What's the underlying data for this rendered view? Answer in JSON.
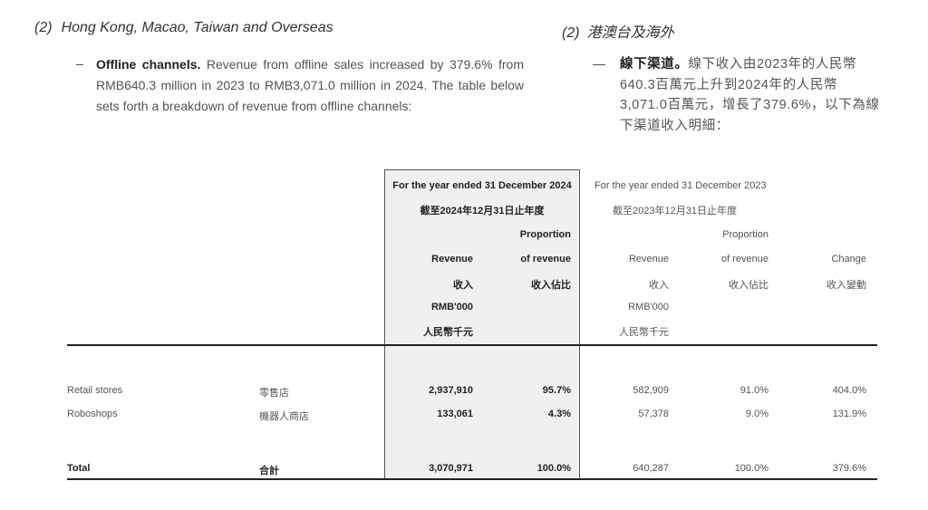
{
  "section": {
    "number_en": "(2)",
    "title_en": "Hong Kong, Macao, Taiwan and Overseas",
    "number_zh": "(2)",
    "title_zh": "港澳台及海外"
  },
  "paragraph_en": {
    "dash": "–",
    "lead": "Offline channels.",
    "body": "Revenue from offline sales increased by 379.6% from RMB640.3 million in 2023 to RMB3,071.0 million in 2024. The table below sets forth a breakdown of revenue from offline channels:"
  },
  "paragraph_zh": {
    "dash": "—",
    "lead": "線下渠道。",
    "body": "線下收入由2023年的人民幣640.3百萬元上升到2024年的人民幣3,071.0百萬元，增長了379.6%，以下為線下渠道收入明細："
  },
  "table": {
    "period_2024_en": "For the year ended 31 December 2024",
    "period_2024_zh": "截至2024年12月31日止年度",
    "period_2023_en": "For the year ended 31 December 2023",
    "period_2023_zh": "截至2023年12月31日止年度",
    "col_revenue_en": "Revenue",
    "col_revenue_zh": "收入",
    "col_proportion_en_1": "Proportion",
    "col_proportion_en_2": "of revenue",
    "col_proportion_zh": "收入佔比",
    "col_change_en": "Change",
    "col_change_zh": "收入變動",
    "unit_en": "RMB'000",
    "unit_zh": "人民幣千元",
    "rows": [
      {
        "label_en": "Retail stores",
        "label_zh": "零售店",
        "rev_2024": "2,937,910",
        "prop_2024": "95.7%",
        "rev_2023": "582,909",
        "prop_2023": "91.0%",
        "change": "404.0%"
      },
      {
        "label_en": "Roboshops",
        "label_zh": "機器人商店",
        "rev_2024": "133,061",
        "prop_2024": "4.3%",
        "rev_2023": "57,378",
        "prop_2023": "9.0%",
        "change": "131.9%"
      }
    ],
    "total": {
      "label_en": "Total",
      "label_zh": "合計",
      "rev_2024": "3,070,971",
      "prop_2024": "100.0%",
      "rev_2023": "640,287",
      "prop_2023": "100.0%",
      "change": "379.6%"
    }
  }
}
